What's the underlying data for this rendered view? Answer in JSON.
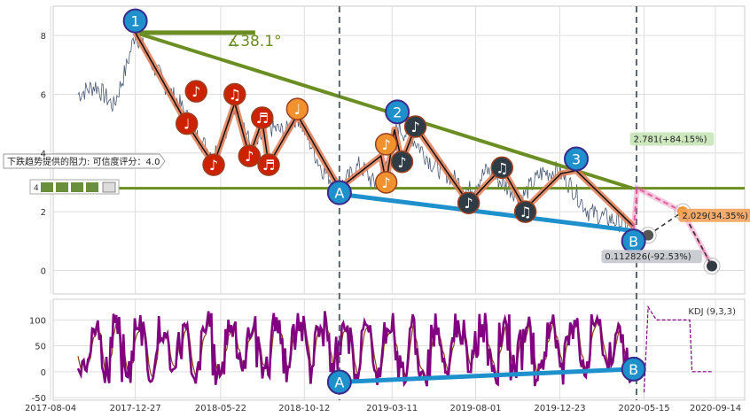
{
  "chart_data": {
    "type": "line",
    "colors": {
      "price": "#4a5a75",
      "trend_green": "#6b8e23",
      "blue_line": "#1e90cc",
      "wave_orange": "#e07b53",
      "wave_dark": "#2f3b45",
      "red_note": "#cc2200",
      "orange_note": "#f0932e",
      "kdj_k": "#800080",
      "kdj_d": "#8b4513",
      "forecast_pink": "#e85fa0"
    },
    "price_panel": {
      "yticks": [
        "0",
        "2",
        "4",
        "6",
        "8"
      ],
      "ylim": [
        -0.8,
        9.0
      ],
      "support_level": 2.8,
      "upper_trend": [
        [
          "2017-12-27",
          8.1
        ],
        [
          "2020-04-25",
          2.8
        ]
      ],
      "angle_line": [
        [
          "2017-12-27",
          8.1
        ],
        [
          "2018-07-20",
          8.1
        ]
      ],
      "angle_label": "∡38.1°",
      "blue_trend": [
        [
          "2018-12-11",
          2.6
        ],
        [
          "2020-04-27",
          1.35
        ]
      ],
      "vlines": [
        "2018-12-11",
        "2020-05-02"
      ],
      "labels": [
        {
          "text": "1",
          "x": "2017-12-27",
          "y": 8.5
        },
        {
          "text": "2",
          "x": "2019-03-20",
          "y": 5.4
        },
        {
          "text": "3",
          "x": "2020-01-20",
          "y": 3.8
        },
        {
          "text": "A",
          "x": "2018-12-11",
          "y": 2.65
        },
        {
          "text": "B",
          "x": "2020-04-27",
          "y": 1.0
        }
      ],
      "resistance_box": "下跌趋势提供的阻力: 可信度评分：4.0",
      "rating_box_value": "4",
      "forecast_labels": [
        {
          "text": "2.781(+84.15%)",
          "x": "2020-05-03",
          "y": 4.4
        },
        {
          "text": "2.029(34.35%)",
          "x": "2020-07-25",
          "y": 1.8
        },
        {
          "text": "0.112826(-92.53%)",
          "x": "2020-05-28",
          "y": 0.4
        }
      ]
    },
    "kdj_panel": {
      "label": "KDJ (9,3,3)",
      "yticks": [
        "-50",
        "0",
        "50",
        "100"
      ],
      "ylim": [
        -55,
        140
      ],
      "blue_trend": [
        [
          "2018-12-11",
          -20
        ],
        [
          "2020-04-27",
          5
        ]
      ],
      "labels": [
        {
          "text": "A",
          "x": "2018-12-11",
          "y": -20
        },
        {
          "text": "B",
          "x": "2020-04-27",
          "y": 5
        }
      ]
    },
    "xticks": [
      "2017-08-04",
      "2017-12-27",
      "2018-05-22",
      "2018-10-12",
      "2019-03-11",
      "2019-08-01",
      "2019-12-23",
      "2020-05-15",
      "2020-09-14"
    ]
  }
}
